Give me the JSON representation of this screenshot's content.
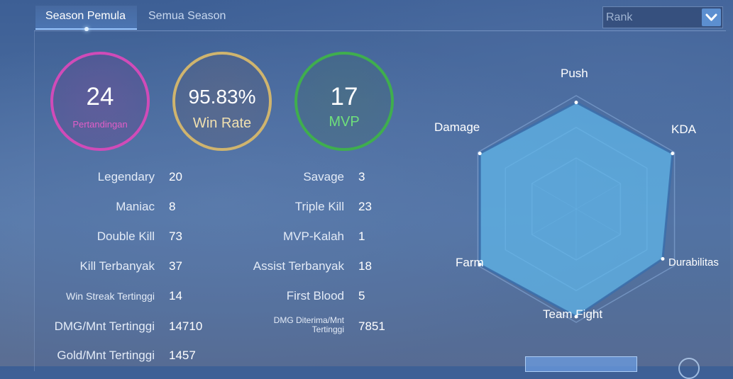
{
  "tabs": {
    "season_pemula": "Season Pemula",
    "semua_season": "Semua Season"
  },
  "filter": {
    "selected": "Rank",
    "icon": "chevron-down-icon"
  },
  "summary": {
    "matches": {
      "value": "24",
      "label": "Pertandingan"
    },
    "win_rate": {
      "value": "95.83%",
      "label": "Win Rate"
    },
    "mvp": {
      "value": "17",
      "label": "MVP"
    }
  },
  "stats_left": [
    {
      "label": "Legendary",
      "value": "20"
    },
    {
      "label": "Maniac",
      "value": "8"
    },
    {
      "label": "Double Kill",
      "value": "73"
    },
    {
      "label": "Kill Terbanyak",
      "value": "37"
    },
    {
      "label": "Win Streak Tertinggi",
      "value": "14"
    },
    {
      "label": "DMG/Mnt Tertinggi",
      "value": "14710"
    },
    {
      "label": "Gold/Mnt Tertinggi",
      "value": "1457"
    }
  ],
  "stats_right": [
    {
      "label": "Savage",
      "value": "3"
    },
    {
      "label": "Triple Kill",
      "value": "23"
    },
    {
      "label": "MVP-Kalah",
      "value": "1"
    },
    {
      "label": "Assist Terbanyak",
      "value": "18"
    },
    {
      "label": "First Blood",
      "value": "5"
    },
    {
      "label": "DMG Diterima/Mnt Tertinggi",
      "value": "7851"
    }
  ],
  "radar": {
    "axes": [
      "Push",
      "KDA",
      "Durabilitas",
      "Team Fight",
      "Farm",
      "Damage"
    ],
    "levels": [
      0.94,
      0.98,
      0.88,
      0.95,
      0.98,
      0.98
    ]
  },
  "colors": {
    "matches_ring": "#d04bb8",
    "win_rate_ring": "#cfb46e",
    "mvp_ring": "#3fae4e",
    "radar_fill": "#5fb7ea"
  }
}
